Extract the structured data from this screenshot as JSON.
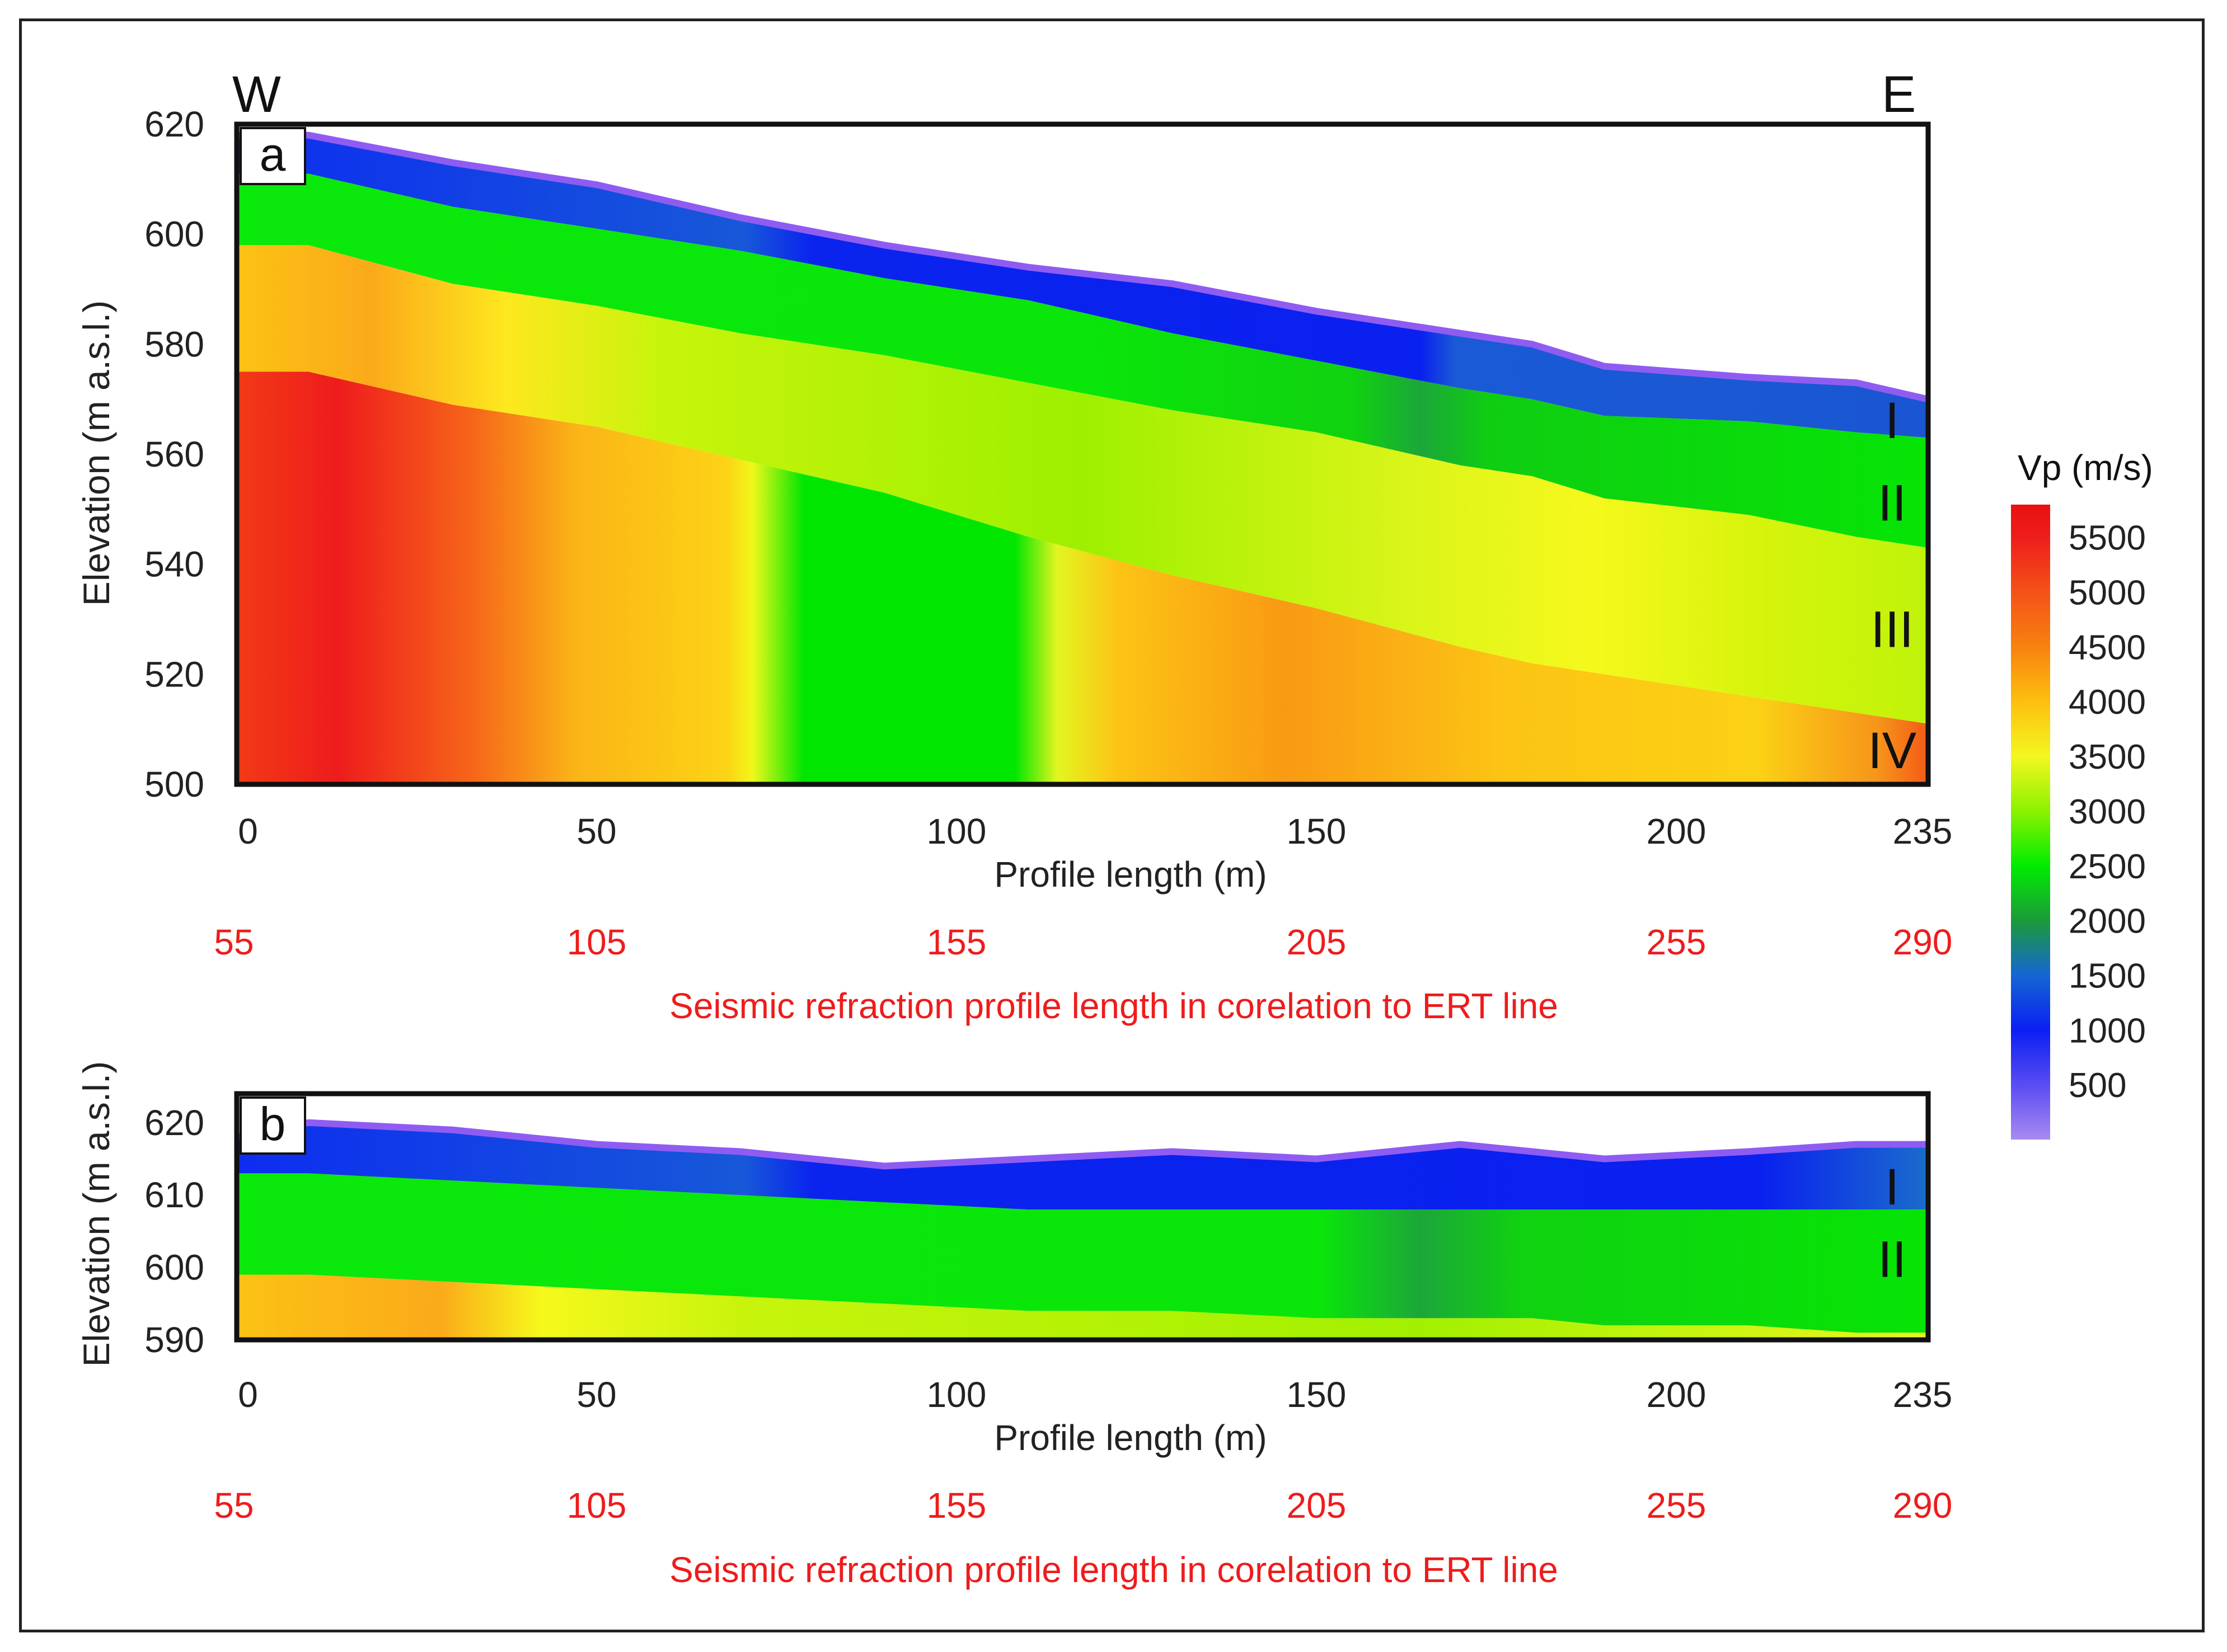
{
  "chart_data": [
    {
      "type": "heatmap",
      "panel": "a",
      "orientation_left": "W",
      "orientation_right": "E",
      "ylabel": "Elevation (m a.s.l.)",
      "xlabel": "Profile length (m)",
      "secondary_xlabel": "Seismic refraction profile length in corelation to ERT line",
      "xlim": [
        0,
        235
      ],
      "ylim": [
        500,
        620
      ],
      "x_ticks": [
        0,
        50,
        100,
        150,
        200,
        235
      ],
      "y_ticks": [
        500,
        520,
        540,
        560,
        580,
        600,
        620
      ],
      "secondary_x_ticks": [
        {
          "x": 0,
          "label": "55"
        },
        {
          "x": 50,
          "label": "105"
        },
        {
          "x": 100,
          "label": "155"
        },
        {
          "x": 150,
          "label": "205"
        },
        {
          "x": 200,
          "label": "255"
        },
        {
          "x": 235,
          "label": "290"
        }
      ],
      "layers": [
        {
          "label": "I",
          "vp_range_m_s": "500-1500"
        },
        {
          "label": "II",
          "vp_range_m_s": "2000-2700"
        },
        {
          "label": "III",
          "vp_range_m_s": "3000-3500"
        },
        {
          "label": "IV",
          "vp_range_m_s": "3700-5500"
        }
      ],
      "surfaces": {
        "x": [
          0,
          10,
          30,
          50,
          70,
          90,
          110,
          130,
          150,
          170,
          180,
          190,
          210,
          225,
          235
        ],
        "top": [
          618,
          618,
          613,
          609,
          603,
          598,
          594,
          591,
          586,
          582,
          580,
          576,
          574,
          573,
          570
        ],
        "I_II": [
          611,
          611,
          605,
          601,
          597,
          592,
          588,
          582,
          577,
          572,
          570,
          567,
          566,
          564,
          563
        ],
        "II_III": [
          598,
          598,
          591,
          587,
          582,
          578,
          573,
          568,
          564,
          558,
          556,
          552,
          549,
          545,
          543
        ],
        "III_IV": [
          575,
          575,
          569,
          565,
          559,
          553,
          545,
          538,
          532,
          525,
          522,
          520,
          516,
          513,
          511
        ]
      },
      "layer_label_positions": {
        "x": 230,
        "y": [
          566,
          551,
          528,
          506
        ]
      },
      "anomaly": {
        "x_range": [
          80,
          110
        ],
        "vp_m_s": 2500
      }
    },
    {
      "type": "heatmap",
      "panel": "b",
      "ylabel": "Elevation (m a.s.l.)",
      "xlabel": "Profile length (m)",
      "secondary_xlabel": "Seismic refraction profile length in corelation to ERT line",
      "xlim": [
        0,
        235
      ],
      "ylim": [
        590,
        624
      ],
      "x_ticks": [
        0,
        50,
        100,
        150,
        200,
        235
      ],
      "y_ticks": [
        590,
        600,
        610,
        620
      ],
      "secondary_x_ticks": [
        {
          "x": 0,
          "label": "55"
        },
        {
          "x": 50,
          "label": "105"
        },
        {
          "x": 100,
          "label": "155"
        },
        {
          "x": 150,
          "label": "205"
        },
        {
          "x": 200,
          "label": "255"
        },
        {
          "x": 235,
          "label": "290"
        }
      ],
      "layers": [
        {
          "label": "I",
          "vp_range_m_s": "500-1500"
        },
        {
          "label": "II",
          "vp_range_m_s": "2000-2700"
        }
      ],
      "surfaces": {
        "x": [
          0,
          10,
          30,
          50,
          70,
          90,
          110,
          130,
          150,
          170,
          180,
          190,
          210,
          225,
          235
        ],
        "top": [
          618,
          620,
          619,
          617,
          616,
          614,
          615,
          616,
          615,
          617,
          616,
          615,
          616,
          617,
          617
        ],
        "I_II": [
          613,
          613,
          612,
          611,
          610,
          609,
          608,
          608,
          608,
          608,
          608,
          608,
          608,
          608,
          608
        ],
        "II_III": [
          599,
          599,
          598,
          597,
          596,
          595,
          594,
          594,
          593,
          593,
          593,
          592,
          592,
          591,
          591
        ]
      },
      "layer_label_positions": {
        "x": 230,
        "y": [
          611,
          601
        ]
      }
    }
  ],
  "colorbar": {
    "title": "Vp (m/s)",
    "min": 0,
    "max": 5800,
    "ticks": [
      500,
      1000,
      1500,
      2000,
      2500,
      3000,
      3500,
      4000,
      4500,
      5000,
      5500
    ],
    "stops": [
      {
        "v": 0,
        "c": "#a98af2"
      },
      {
        "v": 500,
        "c": "#5a4cf2"
      },
      {
        "v": 1000,
        "c": "#0b1ff3"
      },
      {
        "v": 1500,
        "c": "#1466d2"
      },
      {
        "v": 2000,
        "c": "#1c9a3a"
      },
      {
        "v": 2500,
        "c": "#00ec00"
      },
      {
        "v": 3000,
        "c": "#8cf200"
      },
      {
        "v": 3500,
        "c": "#f4f720"
      },
      {
        "v": 4000,
        "c": "#fdbf10"
      },
      {
        "v": 4500,
        "c": "#f8820f"
      },
      {
        "v": 5000,
        "c": "#f45218"
      },
      {
        "v": 5500,
        "c": "#ee1d1d"
      },
      {
        "v": 5800,
        "c": "#ea1010"
      }
    ]
  },
  "colors": {
    "layer_I_top": "#8f5cf2",
    "layer_I": "#0a25ee",
    "layer_II": "#02e302",
    "layer_III": "#b7f505",
    "layer_IV": "#f8a114",
    "secondary_axis": "#ee1c1c"
  }
}
